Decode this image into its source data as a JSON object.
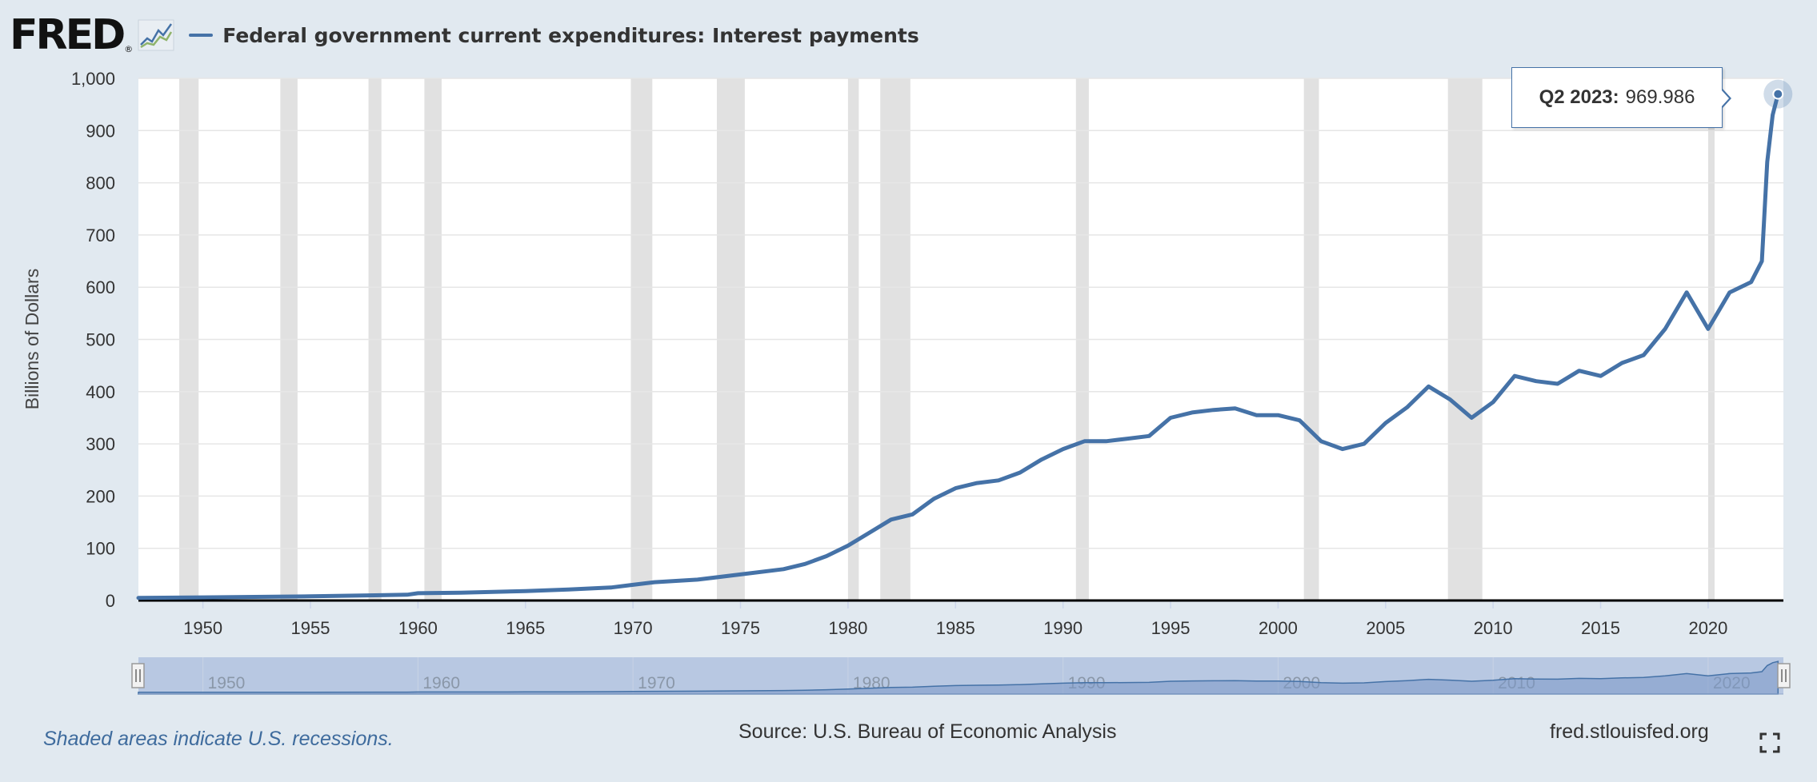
{
  "header": {
    "logo_text": "FRED",
    "logo_reg": "®",
    "series_title": "Federal government current expenditures: Interest payments"
  },
  "tooltip": {
    "label": "Q2 2023:",
    "value": "969.986"
  },
  "footer": {
    "recession_note": "Shaded areas indicate U.S. recessions.",
    "source": "Source: U.S. Bureau of Economic Analysis",
    "site": "fred.stlouisfed.org"
  },
  "icons": {
    "logo_chart": "line-chart-icon",
    "fullscreen": "fullscreen-icon"
  },
  "colors": {
    "line": "#4572a7",
    "recession": "#e1e1e1",
    "background": "#e1e9f0",
    "navigator_fill": "#b8c8e2"
  },
  "chart_data": {
    "type": "line",
    "title": "Federal government current expenditures: Interest payments",
    "xlabel": "",
    "ylabel": "Billions of Dollars",
    "ylim": [
      0,
      1000
    ],
    "xlim": [
      1947,
      2023.5
    ],
    "y_ticks": [
      0,
      100,
      200,
      300,
      400,
      500,
      600,
      700,
      800,
      900,
      "1,000"
    ],
    "x_ticks": [
      1950,
      1955,
      1960,
      1965,
      1970,
      1975,
      1980,
      1985,
      1990,
      1995,
      2000,
      2005,
      2010,
      2015,
      2020
    ],
    "navigator_ticks": [
      1950,
      1960,
      1970,
      1980,
      1990,
      2000,
      2010,
      2020
    ],
    "grid": true,
    "legend": "top-left",
    "recessions": [
      [
        1948.9,
        1949.8
      ],
      [
        1953.6,
        1954.4
      ],
      [
        1957.7,
        1958.3
      ],
      [
        1960.3,
        1961.1
      ],
      [
        1969.9,
        1970.9
      ],
      [
        1973.9,
        1975.2
      ],
      [
        1980.0,
        1980.5
      ],
      [
        1981.5,
        1982.9
      ],
      [
        1990.6,
        1991.2
      ],
      [
        2001.2,
        2001.9
      ],
      [
        2007.9,
        2009.5
      ],
      [
        2020.0,
        2020.3
      ]
    ],
    "series": [
      {
        "name": "Federal government current expenditures: Interest payments",
        "x": [
          1947,
          1950,
          1955,
          1958,
          1959.5,
          1960,
          1962,
          1965,
          1967,
          1969,
          1970,
          1971,
          1973,
          1975,
          1977,
          1978,
          1979,
          1980,
          1981,
          1982,
          1983,
          1984,
          1985,
          1986,
          1987,
          1988,
          1989,
          1990,
          1991,
          1992,
          1993,
          1994,
          1995,
          1996,
          1997,
          1998,
          1999,
          2000,
          2001,
          2002,
          2003,
          2004,
          2005,
          2006,
          2007,
          2008,
          2009,
          2010,
          2011,
          2012,
          2013,
          2014,
          2015,
          2016,
          2017,
          2018,
          2019,
          2020,
          2021,
          2022,
          2022.5,
          2022.75,
          2023,
          2023.25
        ],
        "values": [
          5,
          6,
          8,
          10,
          11,
          14,
          15,
          18,
          21,
          25,
          30,
          35,
          40,
          50,
          60,
          70,
          85,
          105,
          130,
          155,
          165,
          195,
          215,
          225,
          230,
          245,
          270,
          290,
          305,
          305,
          310,
          315,
          350,
          360,
          365,
          368,
          355,
          355,
          345,
          305,
          290,
          300,
          340,
          370,
          410,
          385,
          350,
          380,
          430,
          420,
          415,
          440,
          430,
          455,
          470,
          520,
          590,
          520,
          590,
          610,
          650,
          840,
          930,
          970
        ]
      }
    ],
    "highlight_point": {
      "label": "Q2 2023",
      "x": 2023.25,
      "y": 969.986
    }
  }
}
